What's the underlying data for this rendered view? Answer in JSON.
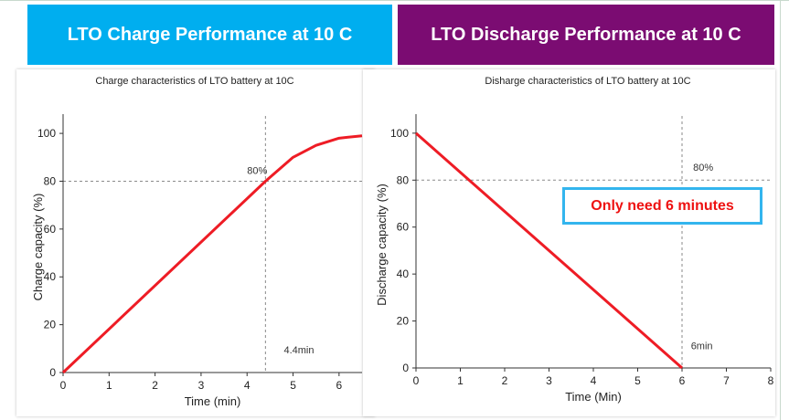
{
  "banners": {
    "left": {
      "text": "LTO Charge Performance at 10 C",
      "color": "#00aeef"
    },
    "right": {
      "text": "LTO Discharge Performance at 10 C",
      "color": "#7b0c72"
    }
  },
  "callout": {
    "text": "Only need 6 minutes"
  },
  "chart_data": [
    {
      "type": "line",
      "title": "Charge characteristics of  LTO battery at 10C",
      "xlabel": "Time (min)",
      "ylabel": "Charge capacity (%)",
      "xlim": [
        0,
        6.5
      ],
      "ylim": [
        0,
        105
      ],
      "xticks": [
        0,
        1,
        2,
        3,
        4,
        5,
        6
      ],
      "yticks": [
        0,
        20,
        40,
        60,
        80,
        100
      ],
      "line_color": "#ee1c25",
      "series": [
        {
          "x": [
            0,
            4.4,
            5.0,
            5.5,
            6.0,
            6.5
          ],
          "y": [
            0,
            80,
            90,
            95,
            98,
            99
          ]
        }
      ],
      "reference_lines": {
        "x": 4.4,
        "y": 80
      },
      "annotations": [
        {
          "text": "80%",
          "x": 4.0,
          "y": 83
        },
        {
          "text": "4.4min",
          "x": 4.8,
          "y": 8
        }
      ]
    },
    {
      "type": "line",
      "title": "Disharge characteristics of  LTO battery at 10C",
      "xlabel": "Time (Min)",
      "ylabel": "Discharge capacity (%)",
      "xlim": [
        0,
        8
      ],
      "ylim": [
        0,
        105
      ],
      "xticks": [
        0,
        1,
        2,
        3,
        4,
        5,
        6,
        7,
        8
      ],
      "yticks": [
        0,
        20,
        40,
        60,
        80,
        100
      ],
      "line_color": "#ee1c25",
      "series": [
        {
          "x": [
            0,
            6
          ],
          "y": [
            100,
            0
          ]
        }
      ],
      "reference_lines": {
        "x": 6,
        "y": 80
      },
      "annotations": [
        {
          "text": "80%",
          "x": 6.25,
          "y": 84
        },
        {
          "text": "6min",
          "x": 6.2,
          "y": 8
        }
      ]
    }
  ]
}
